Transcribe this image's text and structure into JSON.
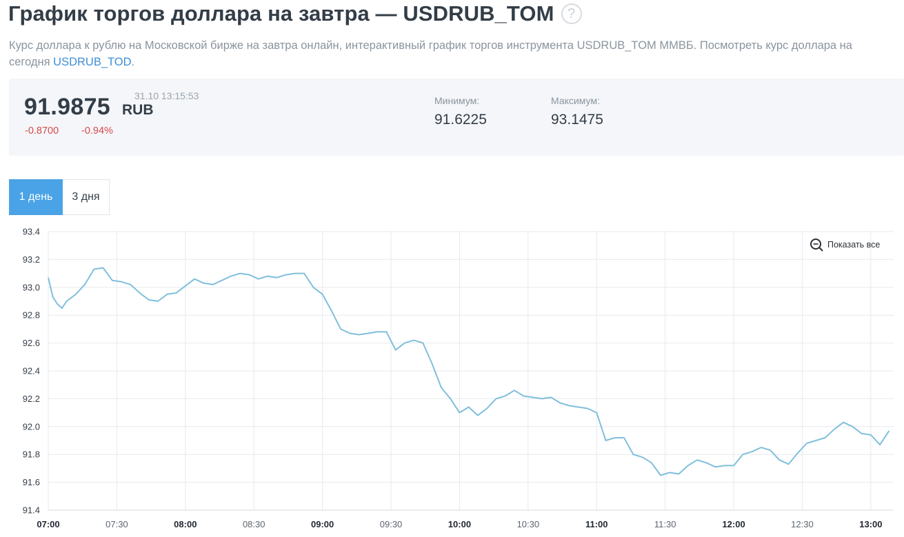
{
  "header": {
    "title": "График торгов доллара на завтра — USDRUB_TOM",
    "help_icon": "?",
    "desc_text": "Курс доллара к рублю на Московской бирже на завтра онлайн, интерактивный график торгов инструмента USDRUB_TOM ММВБ. Посмотреть курс доллара на сегодня ",
    "desc_link": "USDRUB_TOD",
    "desc_end": "."
  },
  "quote": {
    "price": "91.9875",
    "currency": "RUB",
    "timestamp": "31.10 13:15:53",
    "change": "-0.8700",
    "change_pct": "-0.94%",
    "min_label": "Минимум:",
    "min_value": "91.6225",
    "max_label": "Максимум:",
    "max_value": "93.1475"
  },
  "tabs": [
    {
      "label": "1 день",
      "active": true
    },
    {
      "label": "3 дня",
      "active": false
    }
  ],
  "zoom_button": {
    "label": "Показать все",
    "icon": "zoom-out-icon"
  },
  "colors": {
    "line": "#7fbfdb",
    "accent": "#4aa3e6",
    "negative": "#d64a4a"
  },
  "chart_data": {
    "type": "line",
    "grid": true,
    "ylim": [
      91.4,
      93.4
    ],
    "yticks": [
      "93.4",
      "93.2",
      "93.0",
      "92.8",
      "92.6",
      "92.4",
      "92.2",
      "92.0",
      "91.8",
      "91.6",
      "91.4"
    ],
    "xlim": [
      "07:00",
      "13:10"
    ],
    "xticks": [
      {
        "label": "07:00",
        "bold": true
      },
      {
        "label": "07:30",
        "bold": false
      },
      {
        "label": "08:00",
        "bold": true
      },
      {
        "label": "08:30",
        "bold": false
      },
      {
        "label": "09:00",
        "bold": true
      },
      {
        "label": "09:30",
        "bold": false
      },
      {
        "label": "10:00",
        "bold": true
      },
      {
        "label": "10:30",
        "bold": false
      },
      {
        "label": "11:00",
        "bold": true
      },
      {
        "label": "11:30",
        "bold": false
      },
      {
        "label": "12:00",
        "bold": true
      },
      {
        "label": "12:30",
        "bold": false
      },
      {
        "label": "13:00",
        "bold": true
      }
    ],
    "series": [
      {
        "x": [
          "07:00",
          "07:02",
          "07:04",
          "07:06",
          "07:08",
          "07:12",
          "07:16",
          "07:20",
          "07:24",
          "07:28",
          "07:32",
          "07:36",
          "07:40",
          "07:44",
          "07:48",
          "07:52",
          "07:56",
          "08:00",
          "08:04",
          "08:08",
          "08:12",
          "08:16",
          "08:20",
          "08:24",
          "08:28",
          "08:32",
          "08:36",
          "08:40",
          "08:44",
          "08:48",
          "08:52",
          "08:56",
          "09:00",
          "09:04",
          "09:08",
          "09:12",
          "09:16",
          "09:20",
          "09:24",
          "09:28",
          "09:32",
          "09:36",
          "09:40",
          "09:44",
          "09:48",
          "09:52",
          "09:56",
          "10:00",
          "10:04",
          "10:08",
          "10:12",
          "10:16",
          "10:20",
          "10:24",
          "10:28",
          "10:32",
          "10:36",
          "10:40",
          "10:44",
          "10:48",
          "10:52",
          "10:56",
          "11:00",
          "11:04",
          "11:08",
          "11:12",
          "11:16",
          "11:20",
          "11:24",
          "11:28",
          "11:32",
          "11:36",
          "11:40",
          "11:44",
          "11:48",
          "11:52",
          "11:56",
          "12:00",
          "12:04",
          "12:08",
          "12:12",
          "12:16",
          "12:20",
          "12:24",
          "12:28",
          "12:32",
          "12:36",
          "12:40",
          "12:44",
          "12:48",
          "12:52",
          "12:56",
          "13:00",
          "13:04",
          "13:08"
        ],
        "y": [
          93.07,
          92.93,
          92.88,
          92.85,
          92.9,
          92.95,
          93.02,
          93.13,
          93.14,
          93.05,
          93.04,
          93.02,
          92.96,
          92.91,
          92.9,
          92.95,
          92.96,
          93.01,
          93.06,
          93.03,
          93.02,
          93.05,
          93.08,
          93.1,
          93.09,
          93.06,
          93.08,
          93.07,
          93.09,
          93.1,
          93.1,
          93.0,
          92.95,
          92.83,
          92.7,
          92.67,
          92.66,
          92.67,
          92.68,
          92.68,
          92.55,
          92.6,
          92.62,
          92.6,
          92.45,
          92.28,
          92.2,
          92.1,
          92.14,
          92.08,
          92.13,
          92.2,
          92.22,
          92.26,
          92.22,
          92.21,
          92.2,
          92.21,
          92.17,
          92.15,
          92.14,
          92.13,
          92.1,
          91.9,
          91.92,
          91.92,
          91.8,
          91.78,
          91.74,
          91.65,
          91.67,
          91.66,
          91.72,
          91.76,
          91.74,
          91.71,
          91.72,
          91.72,
          91.8,
          91.82,
          91.85,
          91.83,
          91.76,
          91.73,
          91.81,
          91.88,
          91.9,
          91.92,
          91.98,
          92.03,
          92.0,
          91.95,
          91.94,
          91.87,
          91.97
        ]
      }
    ]
  }
}
